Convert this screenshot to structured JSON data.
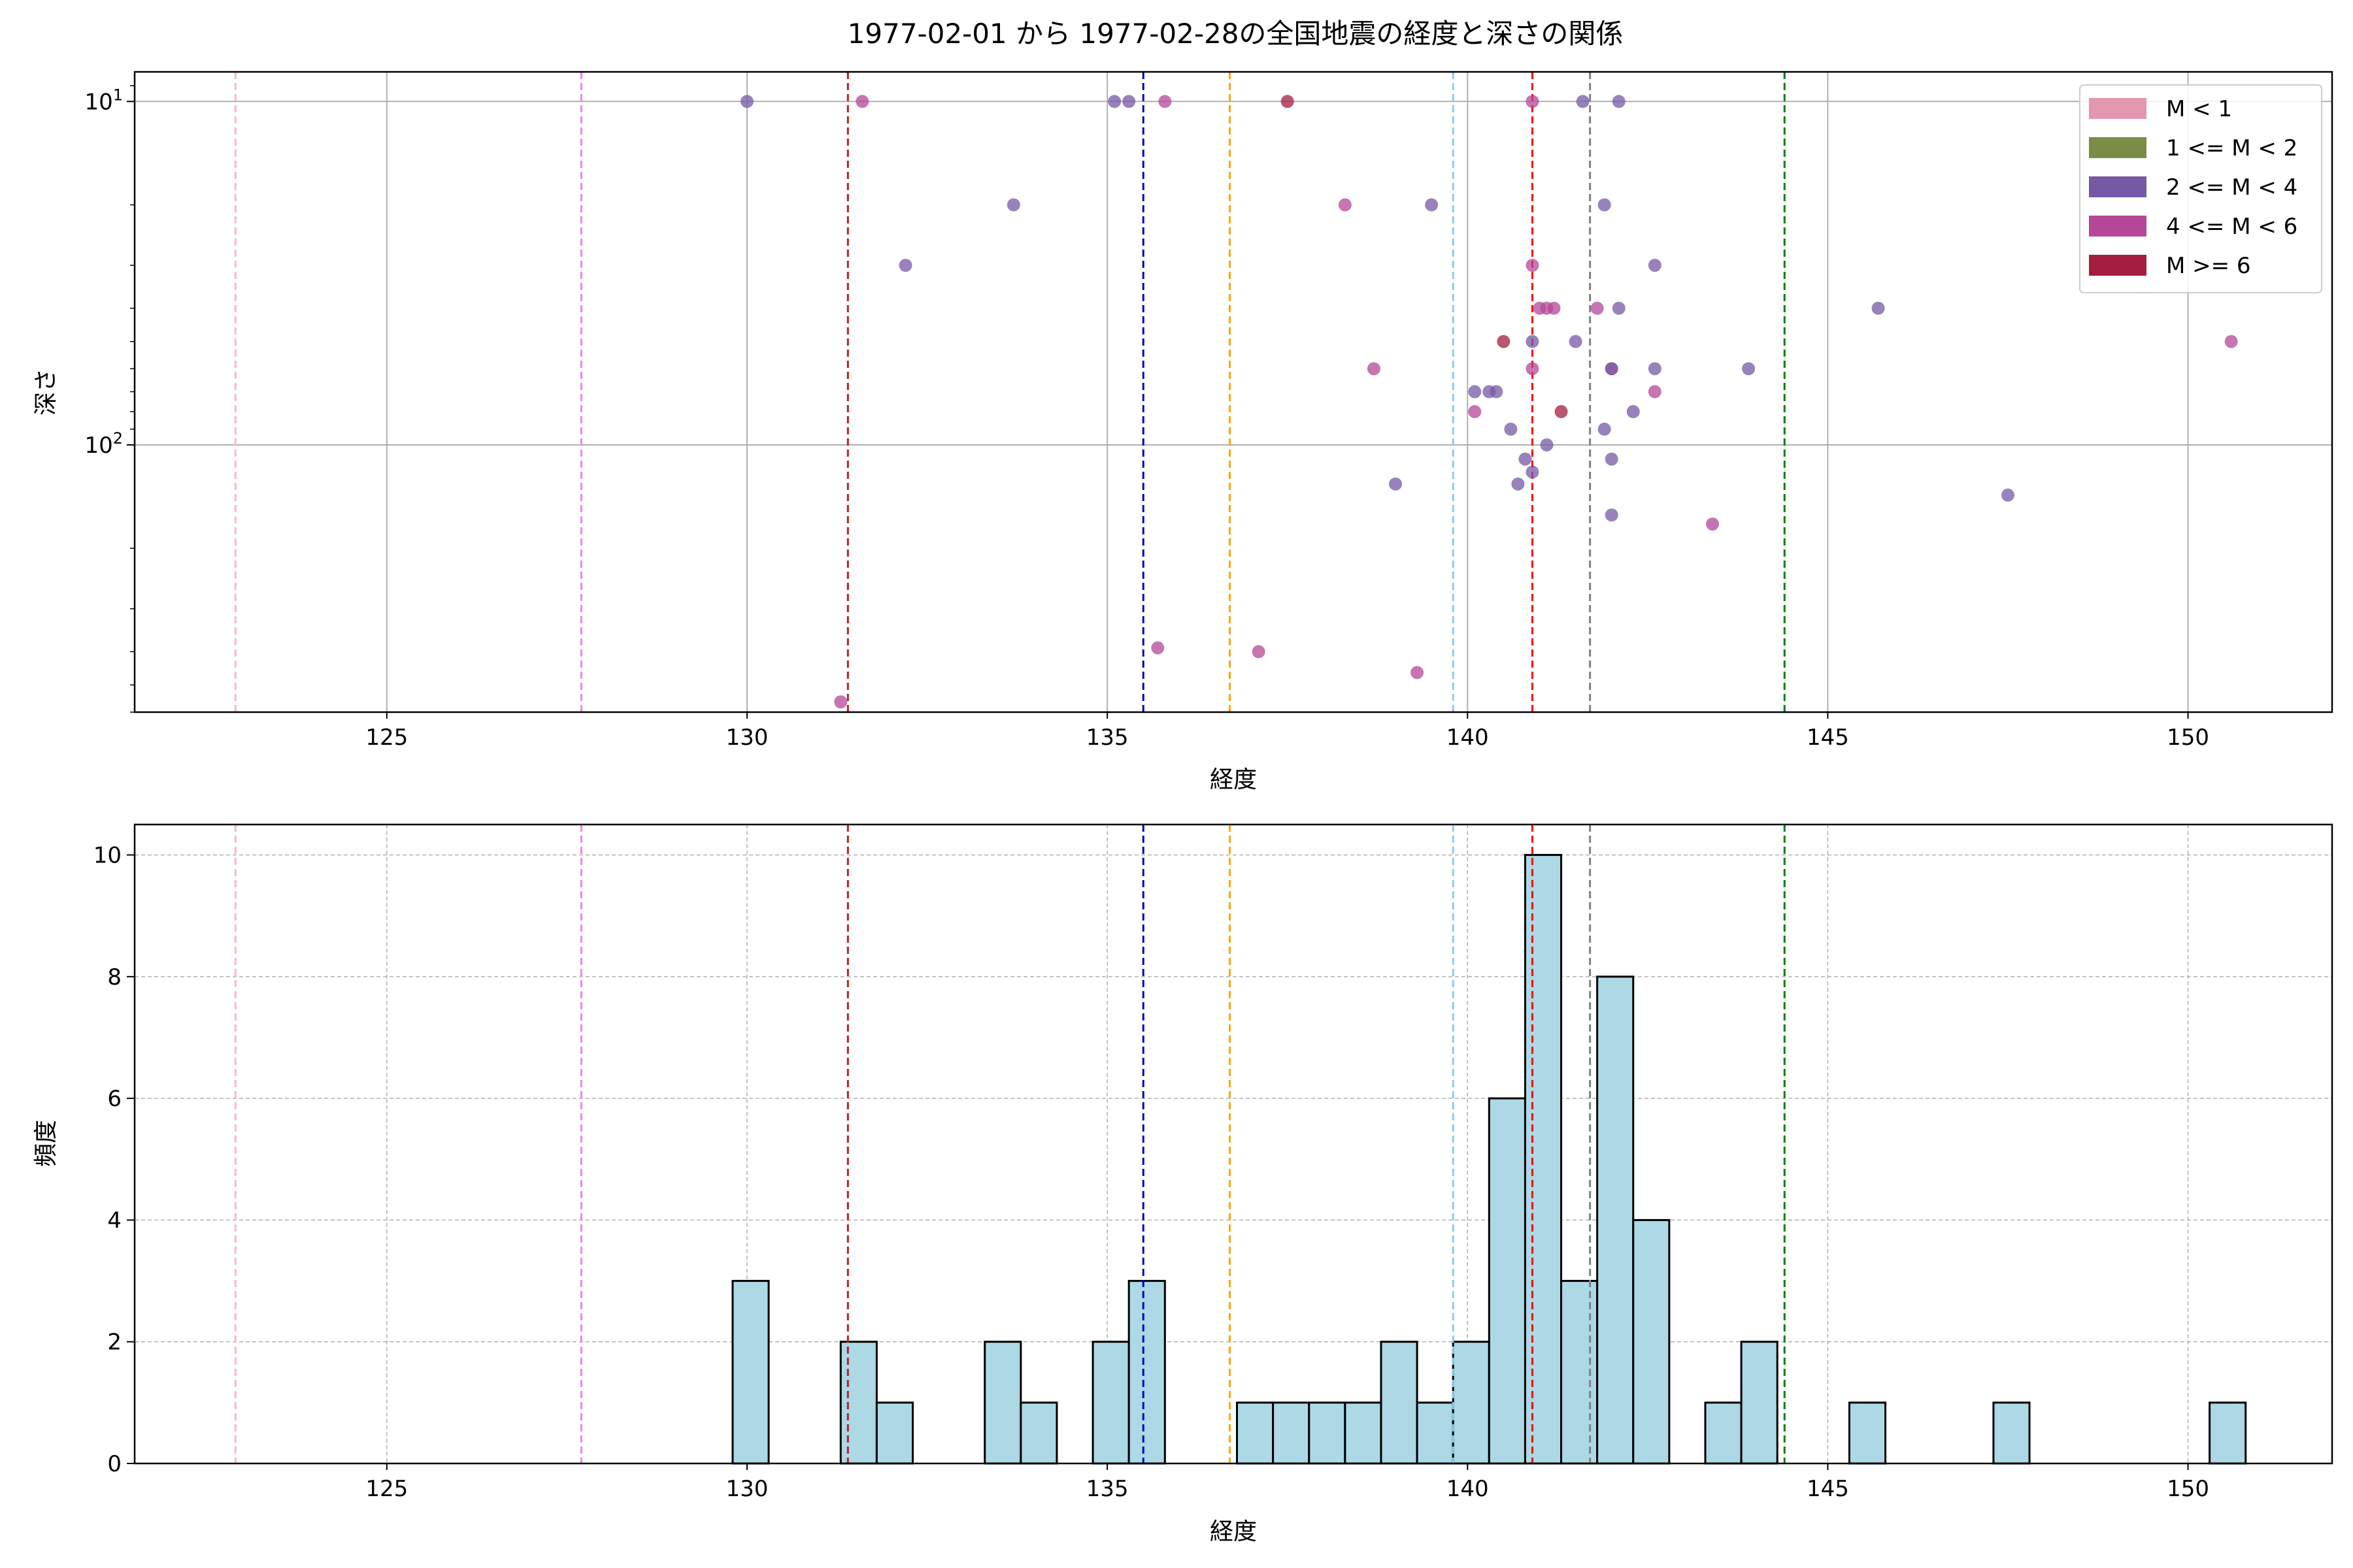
{
  "figure": {
    "title": "1977-02-01 から 1977-02-28の全国地震の経度と深さの関係"
  },
  "colors": {
    "M_lt_1": "#e597b0",
    "M_1_2": "#7a8c45",
    "M_2_4": "#7558a6",
    "M_4_6": "#b44797",
    "M_ge_6": "#a31e3f",
    "hist_bar": "#add8e6",
    "grid": "#b0b0b0"
  },
  "chart_data": [
    {
      "type": "scatter",
      "xlabel": "経度",
      "ylabel": "深さ",
      "xlim": [
        121.5,
        152.0
      ],
      "yscale": "log",
      "y_inverted": true,
      "ylim": [
        600,
        8.2
      ],
      "xticks": [
        125,
        130,
        135,
        140,
        145,
        150
      ],
      "yticks": [
        {
          "value": 10,
          "base": "10",
          "exp": "1"
        },
        {
          "value": 100,
          "base": "10",
          "exp": "2"
        }
      ],
      "grid": true,
      "legend_position": "top-right",
      "legend": [
        {
          "label": "M < 1",
          "color_key": "M_lt_1"
        },
        {
          "label": "1 <= M < 2",
          "color_key": "M_1_2"
        },
        {
          "label": "2 <= M < 4",
          "color_key": "M_2_4"
        },
        {
          "label": "4 <= M < 6",
          "color_key": "M_4_6"
        },
        {
          "label": "M >= 6",
          "color_key": "M_ge_6"
        }
      ],
      "vlines": [
        {
          "x": 122.9,
          "color": "#ffb6c1"
        },
        {
          "x": 127.7,
          "color": "#ee82ee"
        },
        {
          "x": 131.4,
          "color": "#b22222"
        },
        {
          "x": 135.5,
          "color": "#0000cd"
        },
        {
          "x": 136.7,
          "color": "#ffa500"
        },
        {
          "x": 139.8,
          "color": "#87ceeb"
        },
        {
          "x": 140.9,
          "color": "#ff0000"
        },
        {
          "x": 141.7,
          "color": "#808080"
        },
        {
          "x": 144.4,
          "color": "#008000"
        }
      ],
      "points": [
        {
          "x": 130.0,
          "y": 10,
          "group": "M_2_4"
        },
        {
          "x": 131.6,
          "y": 10,
          "group": "M_4_6"
        },
        {
          "x": 135.1,
          "y": 10,
          "group": "M_2_4"
        },
        {
          "x": 135.3,
          "y": 10,
          "group": "M_2_4"
        },
        {
          "x": 135.8,
          "y": 10,
          "group": "M_4_6"
        },
        {
          "x": 137.5,
          "y": 10,
          "group": "M_ge_6"
        },
        {
          "x": 140.9,
          "y": 10,
          "group": "M_4_6"
        },
        {
          "x": 141.6,
          "y": 10,
          "group": "M_2_4"
        },
        {
          "x": 142.1,
          "y": 10,
          "group": "M_2_4"
        },
        {
          "x": 133.7,
          "y": 20,
          "group": "M_2_4"
        },
        {
          "x": 138.3,
          "y": 20,
          "group": "M_4_6"
        },
        {
          "x": 139.5,
          "y": 20,
          "group": "M_2_4"
        },
        {
          "x": 141.9,
          "y": 20,
          "group": "M_2_4"
        },
        {
          "x": 132.2,
          "y": 30,
          "group": "M_2_4"
        },
        {
          "x": 140.9,
          "y": 30,
          "group": "M_4_6"
        },
        {
          "x": 142.6,
          "y": 30,
          "group": "M_2_4"
        },
        {
          "x": 141.0,
          "y": 40,
          "group": "M_4_6"
        },
        {
          "x": 141.1,
          "y": 40,
          "group": "M_4_6"
        },
        {
          "x": 141.2,
          "y": 40,
          "group": "M_4_6"
        },
        {
          "x": 141.8,
          "y": 40,
          "group": "M_4_6"
        },
        {
          "x": 142.1,
          "y": 40,
          "group": "M_2_4"
        },
        {
          "x": 145.7,
          "y": 40,
          "group": "M_2_4"
        },
        {
          "x": 140.5,
          "y": 50,
          "group": "M_ge_6"
        },
        {
          "x": 140.9,
          "y": 50,
          "group": "M_2_4"
        },
        {
          "x": 141.5,
          "y": 50,
          "group": "M_2_4"
        },
        {
          "x": 150.6,
          "y": 50,
          "group": "M_4_6"
        },
        {
          "x": 138.7,
          "y": 60,
          "group": "M_4_6"
        },
        {
          "x": 140.9,
          "y": 60,
          "group": "M_4_6"
        },
        {
          "x": 142.0,
          "y": 60,
          "group": "M_4_6"
        },
        {
          "x": 142.0,
          "y": 60,
          "group": "M_2_4"
        },
        {
          "x": 142.6,
          "y": 60,
          "group": "M_2_4"
        },
        {
          "x": 143.9,
          "y": 60,
          "group": "M_2_4"
        },
        {
          "x": 140.1,
          "y": 70,
          "group": "M_2_4"
        },
        {
          "x": 140.3,
          "y": 70,
          "group": "M_2_4"
        },
        {
          "x": 140.4,
          "y": 70,
          "group": "M_2_4"
        },
        {
          "x": 142.6,
          "y": 70,
          "group": "M_4_6"
        },
        {
          "x": 140.1,
          "y": 80,
          "group": "M_4_6"
        },
        {
          "x": 141.3,
          "y": 80,
          "group": "M_ge_6"
        },
        {
          "x": 142.3,
          "y": 80,
          "group": "M_2_4"
        },
        {
          "x": 140.6,
          "y": 90,
          "group": "M_2_4"
        },
        {
          "x": 141.9,
          "y": 90,
          "group": "M_2_4"
        },
        {
          "x": 141.1,
          "y": 100,
          "group": "M_2_4"
        },
        {
          "x": 140.8,
          "y": 110,
          "group": "M_2_4"
        },
        {
          "x": 142.0,
          "y": 110,
          "group": "M_2_4"
        },
        {
          "x": 140.9,
          "y": 120,
          "group": "M_2_4"
        },
        {
          "x": 139.0,
          "y": 130,
          "group": "M_2_4"
        },
        {
          "x": 140.7,
          "y": 130,
          "group": "M_2_4"
        },
        {
          "x": 147.5,
          "y": 140,
          "group": "M_2_4"
        },
        {
          "x": 142.0,
          "y": 160,
          "group": "M_2_4"
        },
        {
          "x": 143.4,
          "y": 170,
          "group": "M_4_6"
        },
        {
          "x": 135.7,
          "y": 390,
          "group": "M_4_6"
        },
        {
          "x": 137.1,
          "y": 400,
          "group": "M_4_6"
        },
        {
          "x": 139.3,
          "y": 460,
          "group": "M_4_6"
        },
        {
          "x": 131.3,
          "y": 560,
          "group": "M_4_6"
        }
      ]
    },
    {
      "type": "bar",
      "subtype": "histogram",
      "xlabel": "経度",
      "ylabel": "頻度",
      "xlim": [
        121.5,
        152.0
      ],
      "ylim": [
        0,
        10.5
      ],
      "xticks": [
        125,
        130,
        135,
        140,
        145,
        150
      ],
      "yticks": [
        0,
        2,
        4,
        6,
        8,
        10
      ],
      "grid": true,
      "bin_width": 0.5,
      "vlines": [
        {
          "x": 122.9,
          "color": "#ffb6c1"
        },
        {
          "x": 127.7,
          "color": "#ee82ee"
        },
        {
          "x": 131.4,
          "color": "#b22222"
        },
        {
          "x": 135.5,
          "color": "#0000cd"
        },
        {
          "x": 136.7,
          "color": "#ffa500"
        },
        {
          "x": 139.8,
          "color": "#87ceeb"
        },
        {
          "x": 140.9,
          "color": "#ff0000"
        },
        {
          "x": 141.7,
          "color": "#808080"
        },
        {
          "x": 144.4,
          "color": "#008000"
        }
      ],
      "bins": [
        {
          "start": 129.8,
          "count": 3
        },
        {
          "start": 131.3,
          "count": 2
        },
        {
          "start": 131.8,
          "count": 1
        },
        {
          "start": 133.3,
          "count": 2
        },
        {
          "start": 133.8,
          "count": 1
        },
        {
          "start": 134.8,
          "count": 2
        },
        {
          "start": 135.3,
          "count": 3
        },
        {
          "start": 136.8,
          "count": 1
        },
        {
          "start": 137.3,
          "count": 1
        },
        {
          "start": 137.8,
          "count": 1
        },
        {
          "start": 138.3,
          "count": 1
        },
        {
          "start": 138.8,
          "count": 2
        },
        {
          "start": 139.3,
          "count": 1
        },
        {
          "start": 139.8,
          "count": 2
        },
        {
          "start": 140.3,
          "count": 6
        },
        {
          "start": 140.8,
          "count": 10
        },
        {
          "start": 141.3,
          "count": 3
        },
        {
          "start": 141.8,
          "count": 8
        },
        {
          "start": 142.3,
          "count": 4
        },
        {
          "start": 143.3,
          "count": 1
        },
        {
          "start": 143.8,
          "count": 2
        },
        {
          "start": 145.3,
          "count": 1
        },
        {
          "start": 147.3,
          "count": 1
        },
        {
          "start": 150.3,
          "count": 1
        }
      ]
    }
  ]
}
